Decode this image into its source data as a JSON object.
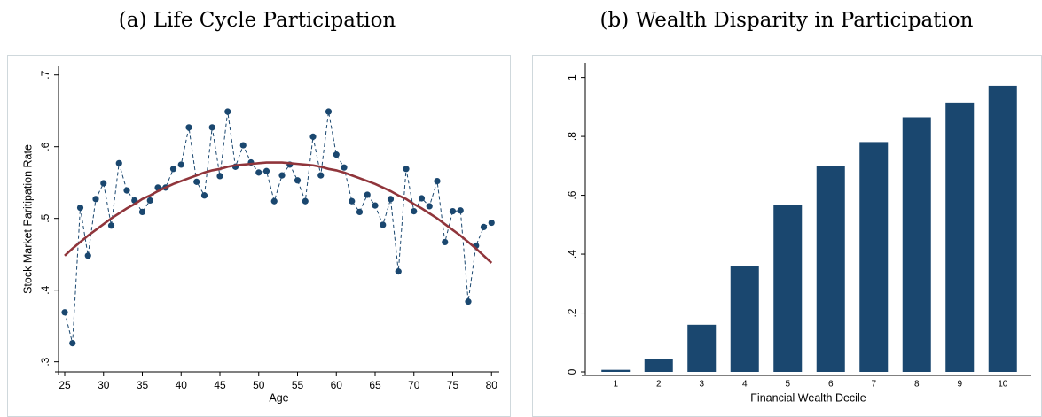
{
  "chart_data": [
    {
      "type": "line",
      "title": "(a) Life Cycle Participation",
      "xlabel": "Age",
      "ylabel": "Stock Market Paritipation Rate",
      "x": [
        25,
        26,
        27,
        28,
        29,
        30,
        31,
        32,
        33,
        34,
        35,
        36,
        37,
        38,
        39,
        40,
        41,
        42,
        43,
        44,
        45,
        46,
        47,
        48,
        49,
        50,
        51,
        52,
        53,
        54,
        55,
        56,
        57,
        58,
        59,
        60,
        61,
        62,
        63,
        64,
        65,
        66,
        67,
        68,
        69,
        70,
        71,
        72,
        73,
        74,
        75,
        76,
        77,
        78,
        79,
        80
      ],
      "series": [
        {
          "color": "#1a476f",
          "dashed": true,
          "markers": true,
          "values": [
            0.369,
            0.326,
            0.515,
            0.448,
            0.527,
            0.549,
            0.49,
            0.577,
            0.539,
            0.525,
            0.509,
            0.525,
            0.543,
            0.543,
            0.569,
            0.575,
            0.627,
            0.551,
            0.532,
            0.627,
            0.559,
            0.649,
            0.572,
            0.602,
            0.578,
            0.564,
            0.566,
            0.524,
            0.56,
            0.575,
            0.553,
            0.524,
            0.614,
            0.56,
            0.649,
            0.589,
            0.571,
            0.524,
            0.509,
            0.533,
            0.518,
            0.491,
            0.527,
            0.426,
            0.569,
            0.51,
            0.528,
            0.517,
            0.552,
            0.467,
            0.51,
            0.511,
            0.384,
            0.462,
            0.488,
            0.494
          ]
        },
        {
          "color": "#90353b",
          "dashed": false,
          "markers": false,
          "values": [
            0.448,
            0.458,
            0.467,
            0.476,
            0.484,
            0.492,
            0.5,
            0.507,
            0.514,
            0.52,
            0.527,
            0.532,
            0.538,
            0.543,
            0.548,
            0.552,
            0.556,
            0.56,
            0.564,
            0.567,
            0.569,
            0.572,
            0.574,
            0.575,
            0.576,
            0.577,
            0.578,
            0.578,
            0.578,
            0.577,
            0.576,
            0.575,
            0.574,
            0.572,
            0.569,
            0.567,
            0.564,
            0.56,
            0.556,
            0.552,
            0.548,
            0.543,
            0.538,
            0.532,
            0.527,
            0.52,
            0.514,
            0.507,
            0.5,
            0.492,
            0.484,
            0.476,
            0.467,
            0.458,
            0.448,
            0.438
          ]
        }
      ],
      "xlim": [
        24.2,
        81
      ],
      "xticks": [
        25,
        30,
        35,
        40,
        45,
        50,
        55,
        60,
        65,
        70,
        75,
        80
      ],
      "ylim": [
        0.286,
        0.712
      ],
      "yticks": [
        {
          "value": 0.3,
          "label": ".3"
        },
        {
          "value": 0.4,
          "label": ".4"
        },
        {
          "value": 0.5,
          "label": ".5"
        },
        {
          "value": 0.6,
          "label": ".6"
        },
        {
          "value": 0.7,
          "label": ".7"
        }
      ],
      "grid": false
    },
    {
      "type": "bar",
      "title": "(b) Wealth Disparity in Participation",
      "xlabel": "Financial Wealth Decile",
      "categories": [
        "1",
        "2",
        "3",
        "4",
        "5",
        "6",
        "7",
        "8",
        "9",
        "10"
      ],
      "values": [
        0.007,
        0.043,
        0.16,
        0.358,
        0.566,
        0.7,
        0.781,
        0.865,
        0.915,
        0.972
      ],
      "color": "#1a476f",
      "ylim": [
        0,
        1.05
      ],
      "yticks": [
        0,
        {
          "value": 0.2,
          "label": ".2"
        },
        {
          "value": 0.4,
          "label": ".4"
        },
        {
          "value": 0.6,
          "label": ".6"
        },
        {
          "value": 0.8,
          "label": ".8"
        },
        1
      ],
      "grid": false
    }
  ]
}
